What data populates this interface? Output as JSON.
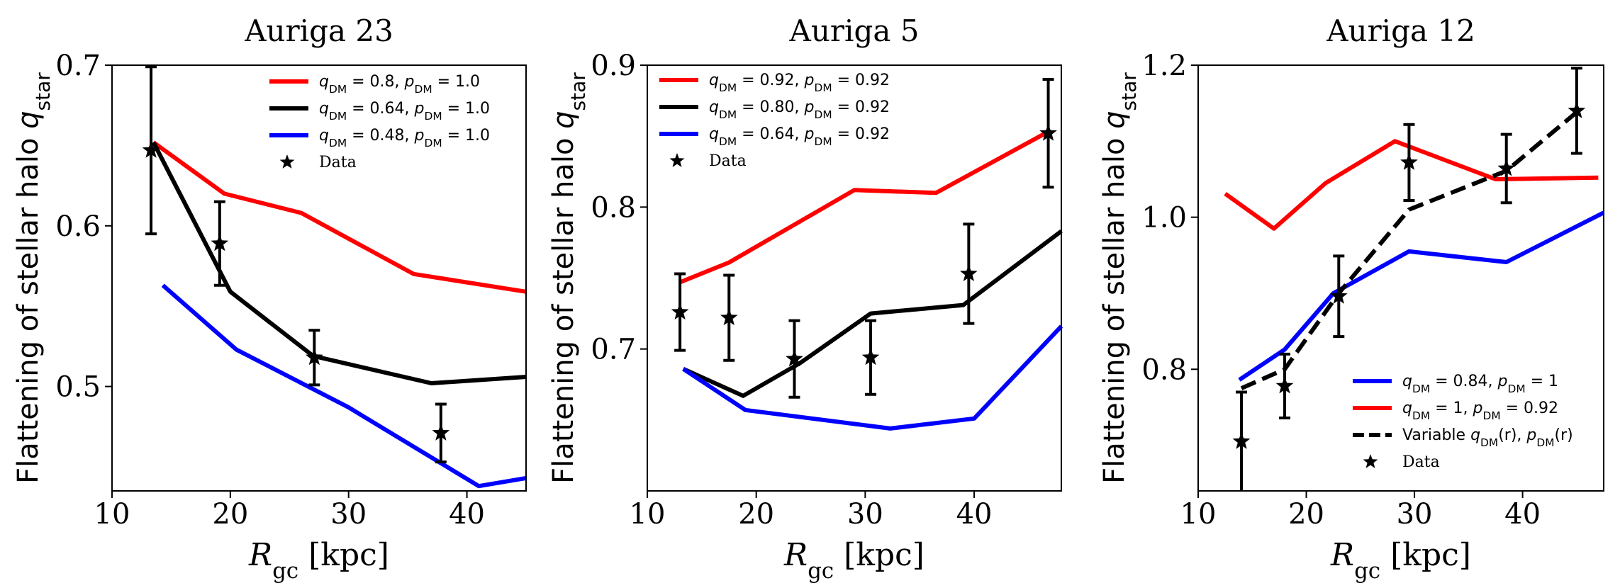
{
  "chart_data": [
    {
      "type": "line",
      "title": "Auriga 23",
      "xlabel": "R_gc [kpc]",
      "ylabel": "Flattening of stellar halo q_star",
      "xlim": [
        10,
        45
      ],
      "ylim": [
        0.435,
        0.7
      ],
      "xticks": [
        "10",
        "20",
        "30",
        "40"
      ],
      "yticks": [
        "0.5",
        "0.6",
        "0.7"
      ],
      "legend_position": "upper-right",
      "series": [
        {
          "name": "q_DM = 0.8, p_DM = 1.0",
          "color": "#ff0000",
          "style": "solid",
          "x": [
            13.5,
            19.5,
            26,
            35.5,
            45
          ],
          "y": [
            0.652,
            0.62,
            0.608,
            0.57,
            0.559
          ]
        },
        {
          "name": "q_DM = 0.64, p_DM = 1.0",
          "color": "#000000",
          "style": "solid",
          "x": [
            13.5,
            20,
            27,
            37,
            45
          ],
          "y": [
            0.652,
            0.559,
            0.519,
            0.502,
            0.506
          ]
        },
        {
          "name": "q_DM = 0.48, p_DM = 1.0",
          "color": "#0000ff",
          "style": "solid",
          "x": [
            14.3,
            20.5,
            30,
            41,
            45
          ],
          "y": [
            0.563,
            0.523,
            0.487,
            0.438,
            0.443
          ]
        },
        {
          "name": "Data",
          "color": "#000000",
          "style": "star-errorbar",
          "x": [
            13.3,
            19.1,
            27.1,
            37.8
          ],
          "y": [
            0.647,
            0.589,
            0.518,
            0.471
          ],
          "err": [
            0.052,
            0.026,
            0.017,
            0.018
          ]
        }
      ]
    },
    {
      "type": "line",
      "title": "Auriga 5",
      "xlabel": "R_gc [kpc]",
      "ylabel": "Flattening of stellar halo q_star",
      "xlim": [
        10,
        48
      ],
      "ylim": [
        0.6,
        0.9
      ],
      "xticks": [
        "10",
        "20",
        "30",
        "40"
      ],
      "yticks": [
        "0.7",
        "0.8",
        "0.9"
      ],
      "legend_position": "upper-left",
      "series": [
        {
          "name": "q_DM = 0.92, p_DM = 0.92",
          "color": "#ff0000",
          "style": "solid",
          "x": [
            13,
            17.5,
            29,
            36.5,
            47
          ],
          "y": [
            0.747,
            0.761,
            0.812,
            0.81,
            0.854
          ]
        },
        {
          "name": "q_DM = 0.80, p_DM = 0.92",
          "color": "#000000",
          "style": "solid",
          "x": [
            13.3,
            18.8,
            24,
            30.5,
            39,
            48
          ],
          "y": [
            0.686,
            0.667,
            0.69,
            0.725,
            0.731,
            0.783
          ]
        },
        {
          "name": "q_DM = 0.64,  p_DM = 0.92",
          "color": "#0000ff",
          "style": "solid",
          "x": [
            13.3,
            19,
            32.3,
            40,
            48
          ],
          "y": [
            0.686,
            0.657,
            0.644,
            0.651,
            0.716
          ]
        },
        {
          "name": "Data",
          "color": "#000000",
          "style": "star-errorbar",
          "x": [
            13,
            17.5,
            23.5,
            30.5,
            39.5,
            46.8
          ],
          "y": [
            0.726,
            0.722,
            0.693,
            0.694,
            0.753,
            0.852
          ],
          "err": [
            0.027,
            0.03,
            0.027,
            0.026,
            0.035,
            0.038
          ]
        }
      ]
    },
    {
      "type": "line",
      "title": "Auriga 12",
      "xlabel": "R_gc [kpc]",
      "ylabel": "Flattening of stellar halo q_star",
      "xlim": [
        10,
        47.5
      ],
      "ylim": [
        0.64,
        1.2
      ],
      "xticks": [
        "10",
        "20",
        "30",
        "40"
      ],
      "yticks": [
        "0.8",
        "1.0",
        "1.2"
      ],
      "legend_position": "lower-right",
      "series": [
        {
          "name": "q_DM = 0.84, p_DM = 1",
          "color": "#0000ff",
          "style": "solid",
          "x": [
            13.8,
            18,
            22.5,
            29.5,
            38.5,
            47.5
          ],
          "y": [
            0.786,
            0.826,
            0.9,
            0.955,
            0.941,
            1.006
          ]
        },
        {
          "name": "q_DM = 1, p_DM = 0.92",
          "color": "#ff0000",
          "style": "solid",
          "x": [
            12.5,
            17,
            21.8,
            28.2,
            37.5,
            47
          ],
          "y": [
            1.031,
            0.985,
            1.045,
            1.1,
            1.05,
            1.052
          ]
        },
        {
          "name": "Variable q_DM(r), p_DM(r)",
          "color": "#000000",
          "style": "dashed",
          "x": [
            14,
            18,
            23,
            29.5,
            38.5,
            45.5
          ],
          "y": [
            0.775,
            0.8,
            0.9,
            1.01,
            1.061,
            1.144
          ]
        },
        {
          "name": "Data",
          "color": "#000000",
          "style": "star-errorbar",
          "x": [
            14,
            18,
            23,
            29.5,
            38.5,
            45
          ],
          "y": [
            0.705,
            0.778,
            0.896,
            1.072,
            1.064,
            1.14
          ],
          "err": [
            0.065,
            0.042,
            0.053,
            0.05,
            0.045,
            0.056
          ]
        }
      ]
    }
  ]
}
